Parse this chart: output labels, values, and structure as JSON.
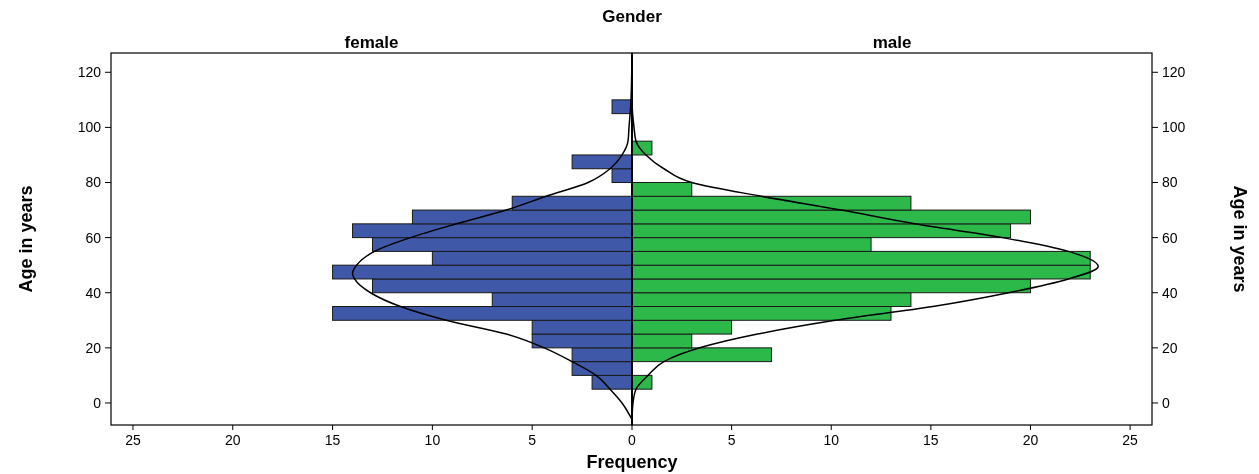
{
  "chart_data": [
    {
      "type": "histogram",
      "title": "Gender",
      "subtitle": "female",
      "xlabel": "Frequency",
      "ylabel": "Age in years",
      "orientation": "horizontal",
      "bins": [
        5,
        10,
        15,
        20,
        25,
        30,
        35,
        40,
        45,
        50,
        55,
        60,
        65,
        70,
        75,
        80,
        85,
        90,
        95,
        100,
        105,
        110
      ],
      "series": [
        {
          "color": "#3f58a8",
          "values": [
            2,
            3,
            3,
            5,
            5,
            15,
            7,
            13,
            15,
            10,
            13,
            14,
            11,
            6,
            0,
            1,
            3,
            0,
            0,
            0,
            1
          ]
        },
        {
          "type": "line",
          "color": "#000000",
          "x": [
            -6,
            0,
            5,
            10,
            15,
            20,
            25,
            30,
            35,
            40,
            45,
            47,
            50,
            55,
            60,
            65,
            70,
            75,
            80,
            85,
            90,
            95,
            100,
            110,
            127
          ],
          "values": [
            0,
            0.5,
            1.1,
            1.8,
            3.0,
            4.4,
            6.3,
            9.3,
            11.6,
            13.1,
            13.9,
            14.0,
            13.8,
            12.9,
            11.1,
            8.8,
            6.3,
            4.3,
            2.2,
            1.1,
            0.5,
            0.2,
            0.15,
            0.05,
            0
          ]
        }
      ],
      "xlim": [
        26.1,
        0
      ],
      "xticks": [
        25,
        20,
        15,
        10,
        5,
        0
      ],
      "ylim": [
        -8,
        127
      ],
      "yticks": [
        0,
        20,
        40,
        60,
        80,
        100,
        120
      ],
      "grid": false
    },
    {
      "type": "histogram",
      "subtitle": "male",
      "ylabel": "Age in years",
      "orientation": "horizontal",
      "bins": [
        5,
        10,
        15,
        20,
        25,
        30,
        35,
        40,
        45,
        50,
        55,
        60,
        65,
        70,
        75,
        80,
        85,
        90,
        95,
        100,
        105,
        110
      ],
      "series": [
        {
          "color": "#2db84a",
          "values": [
            1,
            0,
            7,
            3,
            5,
            13,
            14,
            20,
            23,
            23,
            12,
            19,
            20,
            14,
            3,
            0,
            0,
            1,
            0,
            0,
            0
          ]
        },
        {
          "type": "line",
          "color": "#000000",
          "x": [
            -6,
            0,
            5,
            10,
            15,
            20,
            25,
            30,
            35,
            40,
            45,
            49.5,
            55,
            60,
            65,
            70,
            75,
            80,
            85,
            90,
            95,
            100,
            110,
            127
          ],
          "values": [
            0,
            0.05,
            0.2,
            0.8,
            1.6,
            3.4,
            6.3,
            10.2,
            15.1,
            18.9,
            21.9,
            23.4,
            21.9,
            18.6,
            14.2,
            10.5,
            6.5,
            3.0,
            1.6,
            0.7,
            0.2,
            0.1,
            0,
            0
          ]
        }
      ],
      "xlim": [
        0,
        26.1
      ],
      "xticks": [
        5,
        10,
        15,
        20,
        25
      ],
      "ylim": [
        -8,
        127
      ],
      "yticks": [
        0,
        20,
        40,
        60,
        80,
        100,
        120
      ],
      "grid": false
    }
  ]
}
